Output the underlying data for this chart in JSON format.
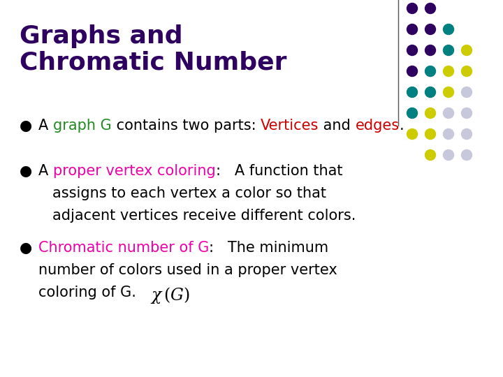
{
  "title_line1": "Graphs and",
  "title_line2": "Chromatic Number",
  "title_color": "#2E0060",
  "background_color": "#FFFFFF",
  "dot_colors": [
    "#2E0060",
    "#008080",
    "#CCCC00",
    "#C8C8DC"
  ],
  "row_patterns": [
    [
      0,
      0,
      null,
      null
    ],
    [
      0,
      0,
      1,
      null
    ],
    [
      0,
      0,
      1,
      2
    ],
    [
      0,
      1,
      2,
      2
    ],
    [
      1,
      1,
      2,
      3
    ],
    [
      1,
      2,
      3,
      3
    ],
    [
      2,
      2,
      3,
      3
    ],
    [
      null,
      2,
      3,
      3
    ]
  ],
  "font_size_title": 26,
  "font_size_body": 15,
  "font_size_small": 12
}
